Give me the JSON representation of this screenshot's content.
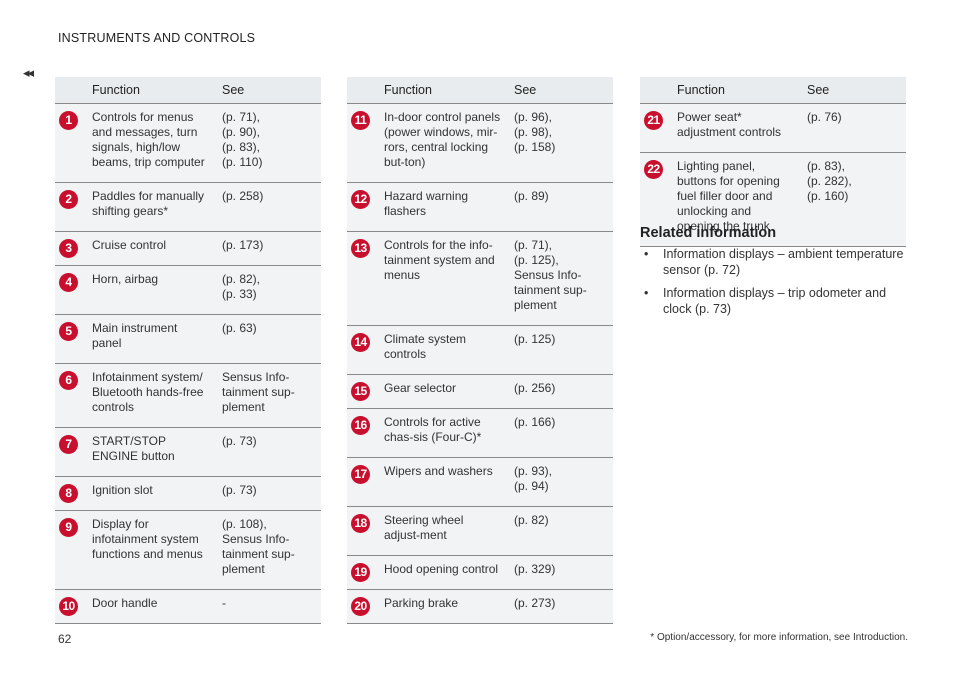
{
  "header": {
    "title": "INSTRUMENTS AND CONTROLS",
    "back_marker": "◂◂"
  },
  "table_headers": {
    "function": "Function",
    "see": "See"
  },
  "columns": [
    {
      "rows": [
        {
          "num": "1",
          "function": "Controls for menus and messages, turn signals, high/low beams, trip computer",
          "see": [
            "(p. 71),",
            "(p. 90),",
            "(p. 83),",
            "(p. 110)"
          ]
        },
        {
          "num": "2",
          "function": "Paddles for manually shifting gears*",
          "see": [
            "(p. 258)"
          ]
        },
        {
          "num": "3",
          "function": "Cruise control",
          "see": [
            "(p. 173)"
          ]
        },
        {
          "num": "4",
          "function": "Horn, airbag",
          "see": [
            "(p. 82),",
            "(p. 33)"
          ]
        },
        {
          "num": "5",
          "function": "Main instrument panel",
          "see": [
            "(p. 63)"
          ]
        },
        {
          "num": "6",
          "function": "Infotainment system/ Bluetooth hands-free controls",
          "see": [
            "Sensus Info-",
            "tainment sup-",
            "plement"
          ]
        },
        {
          "num": "7",
          "function": "START/STOP ENGINE button",
          "see": [
            "(p. 73)"
          ]
        },
        {
          "num": "8",
          "function": "Ignition slot",
          "see": [
            "(p. 73)"
          ]
        },
        {
          "num": "9",
          "function": "Display for infotainment system functions and menus",
          "see": [
            "(p. 108),",
            "Sensus Info-",
            "tainment sup-",
            "plement"
          ]
        },
        {
          "num": "10",
          "function": "Door handle",
          "see": [
            "-"
          ]
        }
      ]
    },
    {
      "rows": [
        {
          "num": "11",
          "function": "In-door control panels (power windows, mir-rors, central locking but-ton)",
          "see": [
            "(p. 96),",
            "(p. 98),",
            "(p. 158)"
          ]
        },
        {
          "num": "12",
          "function": "Hazard warning flashers",
          "see": [
            "(p. 89)"
          ]
        },
        {
          "num": "13",
          "function": "Controls for the info-tainment system and menus",
          "see": [
            "(p. 71),",
            "(p. 125),",
            "Sensus Info-",
            "tainment sup-",
            "plement"
          ]
        },
        {
          "num": "14",
          "function": "Climate system controls",
          "see": [
            "(p. 125)"
          ]
        },
        {
          "num": "15",
          "function": "Gear selector",
          "see": [
            "(p. 256)"
          ]
        },
        {
          "num": "16",
          "function": "Controls for active chas-sis (Four-C)*",
          "see": [
            "(p. 166)"
          ]
        },
        {
          "num": "17",
          "function": "Wipers and washers",
          "see": [
            "(p. 93),",
            "(p. 94)"
          ]
        },
        {
          "num": "18",
          "function": "Steering wheel adjust-ment",
          "see": [
            "(p. 82)"
          ]
        },
        {
          "num": "19",
          "function": "Hood opening control",
          "see": [
            "(p. 329)"
          ]
        },
        {
          "num": "20",
          "function": "Parking brake",
          "see": [
            "(p. 273)"
          ]
        }
      ]
    },
    {
      "rows": [
        {
          "num": "21",
          "function": "Power seat* adjustment controls",
          "see": [
            "(p. 76)"
          ]
        },
        {
          "num": "22",
          "function": "Lighting panel, buttons for opening fuel filler door and unlocking and opening the trunk",
          "see": [
            "(p. 83),",
            "(p. 282),",
            "(p. 160)"
          ]
        }
      ]
    }
  ],
  "related": {
    "title": "Related information",
    "items": [
      "Information displays – ambient temperature sensor (p. 72)",
      "Information displays – trip odometer and clock (p. 73)"
    ]
  },
  "footer": {
    "page_number": "62",
    "footnote": "* Option/accessory, for more information, see Introduction."
  },
  "colors": {
    "badge": "#c8102e",
    "header_bg": "#e9ecee"
  }
}
